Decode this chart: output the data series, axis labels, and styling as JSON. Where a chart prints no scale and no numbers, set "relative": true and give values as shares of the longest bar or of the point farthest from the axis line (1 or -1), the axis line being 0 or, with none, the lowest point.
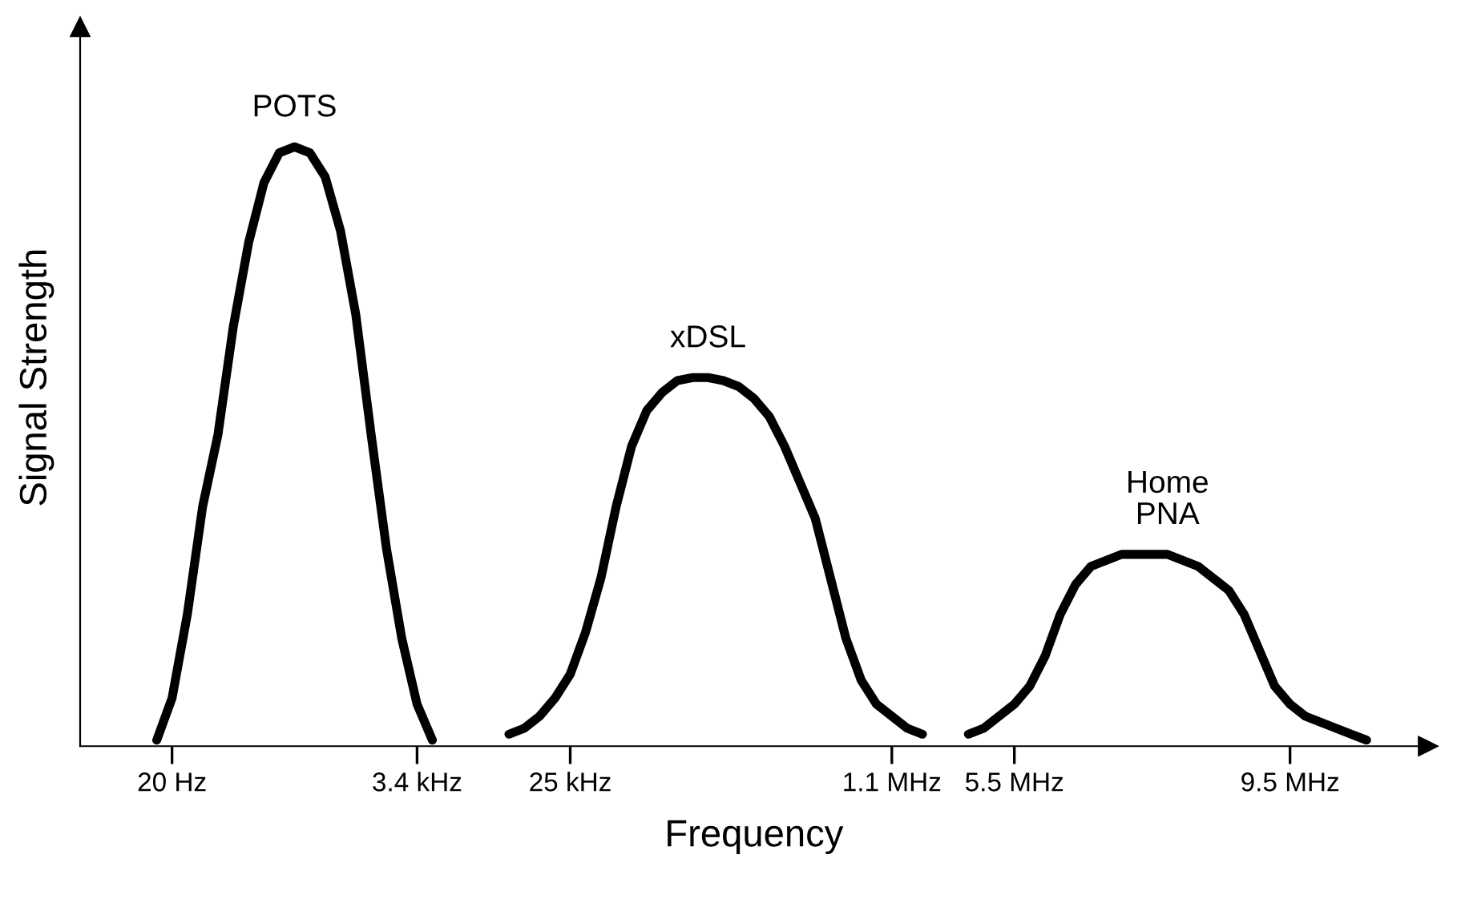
{
  "chart_data": {
    "type": "line",
    "relative": true,
    "xlabel": "Frequency",
    "ylabel": "Signal Strength",
    "legend": false,
    "grid": false,
    "marker": "none",
    "line_style": "solid",
    "categories": [
      null,
      null,
      null,
      null,
      "20 Hz",
      null,
      null,
      null,
      null,
      null,
      null,
      null,
      null,
      null,
      null,
      null,
      null,
      null,
      null,
      null,
      "3.4 kHz",
      null,
      null,
      null,
      null,
      null,
      null,
      null,
      null,
      null,
      "25 kHz",
      null,
      null,
      null,
      null,
      null,
      null,
      null,
      null,
      null,
      null,
      null,
      null,
      null,
      null,
      null,
      null,
      null,
      null,
      null,
      null,
      "1.1 MHz",
      null,
      null,
      null,
      null,
      null,
      null,
      null,
      "5.5 MHz",
      null,
      null,
      null,
      null,
      null,
      null,
      null,
      null,
      null,
      null,
      null,
      null,
      null,
      null,
      null,
      null,
      null,
      "9.5 MHz",
      null,
      null,
      null,
      null,
      null,
      null,
      null
    ],
    "series": [
      {
        "name": "POTS",
        "color": "#000000",
        "values": [
          null,
          null,
          null,
          0.01,
          0.08,
          0.22,
          0.4,
          0.52,
          0.7,
          0.84,
          0.94,
          0.99,
          1.0,
          0.99,
          0.95,
          0.86,
          0.72,
          0.52,
          0.33,
          0.18,
          0.07,
          0.01,
          null,
          null,
          null,
          null,
          null,
          null,
          null,
          null,
          null,
          null,
          null,
          null,
          null,
          null,
          null,
          null,
          null,
          null,
          null,
          null,
          null,
          null,
          null,
          null,
          null,
          null,
          null,
          null,
          null,
          null,
          null,
          null,
          null,
          null,
          null,
          null,
          null,
          null,
          null,
          null,
          null,
          null,
          null,
          null,
          null,
          null,
          null,
          null,
          null,
          null,
          null,
          null,
          null,
          null,
          null,
          null,
          null,
          null,
          null,
          null,
          null,
          null,
          null
        ]
      },
      {
        "name": "xDSL",
        "color": "#000000",
        "values": [
          null,
          null,
          null,
          null,
          null,
          null,
          null,
          null,
          null,
          null,
          null,
          null,
          null,
          null,
          null,
          null,
          null,
          null,
          null,
          null,
          null,
          null,
          null,
          null,
          null,
          null,
          0.02,
          0.03,
          0.05,
          0.08,
          0.12,
          0.19,
          0.28,
          0.4,
          0.5,
          0.56,
          0.59,
          0.61,
          0.615,
          0.615,
          0.61,
          0.6,
          0.58,
          0.55,
          0.5,
          0.44,
          0.38,
          0.28,
          0.18,
          0.11,
          0.07,
          0.05,
          0.03,
          0.02,
          null,
          null,
          null,
          null,
          null,
          null,
          null,
          null,
          null,
          null,
          null,
          null,
          null,
          null,
          null,
          null,
          null,
          null,
          null,
          null,
          null,
          null,
          null,
          null,
          null,
          null,
          null,
          null,
          null,
          null,
          null
        ]
      },
      {
        "name": "Home\nPNA",
        "color": "#000000",
        "values": [
          null,
          null,
          null,
          null,
          null,
          null,
          null,
          null,
          null,
          null,
          null,
          null,
          null,
          null,
          null,
          null,
          null,
          null,
          null,
          null,
          null,
          null,
          null,
          null,
          null,
          null,
          null,
          null,
          null,
          null,
          null,
          null,
          null,
          null,
          null,
          null,
          null,
          null,
          null,
          null,
          null,
          null,
          null,
          null,
          null,
          null,
          null,
          null,
          null,
          null,
          null,
          null,
          null,
          null,
          null,
          null,
          0.02,
          0.03,
          0.05,
          0.07,
          0.1,
          0.15,
          0.22,
          0.27,
          0.3,
          0.31,
          0.32,
          0.32,
          0.32,
          0.32,
          0.31,
          0.3,
          0.28,
          0.26,
          0.22,
          0.16,
          0.1,
          0.07,
          0.05,
          0.04,
          0.03,
          0.02,
          0.01,
          null,
          null
        ]
      }
    ]
  }
}
